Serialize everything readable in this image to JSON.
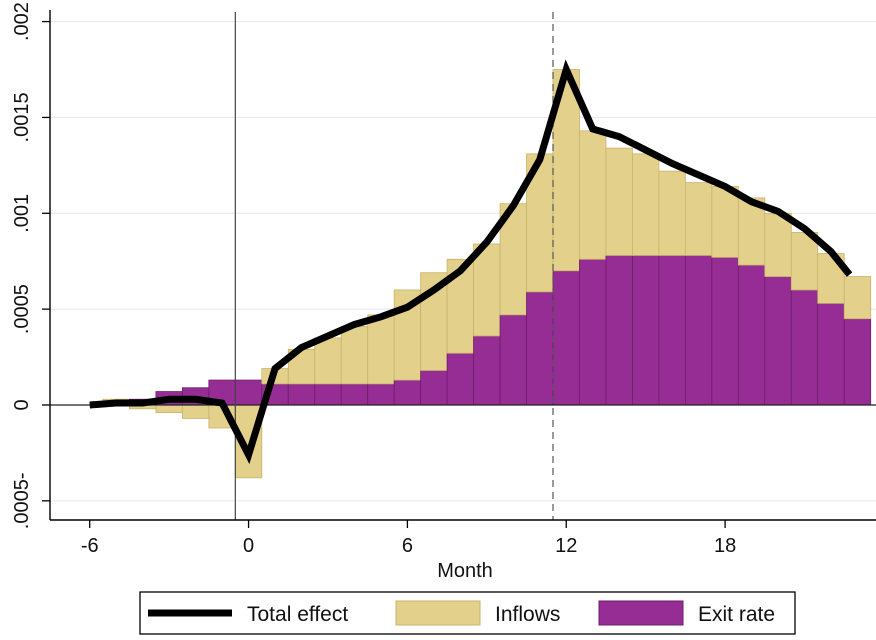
{
  "chart_data": {
    "type": "bar",
    "xlabel": "Month",
    "ylabel": "",
    "xlim": [
      -7.5,
      23.7
    ],
    "ylim": [
      -0.0006,
      0.00205
    ],
    "x_ticks": [
      {
        "value": -6,
        "label": "-6"
      },
      {
        "value": 0,
        "label": "0"
      },
      {
        "value": 6,
        "label": "6"
      },
      {
        "value": 12,
        "label": "12"
      },
      {
        "value": 18,
        "label": "18"
      }
    ],
    "y_ticks": [
      {
        "value": -0.0005,
        "label": ".0005-"
      },
      {
        "value": 0,
        "label": "0"
      },
      {
        "value": 0.0005,
        "label": ".0005"
      },
      {
        "value": 0.001,
        "label": ".001"
      },
      {
        "value": 0.0015,
        "label": ".0015"
      },
      {
        "value": 0.002,
        "label": ".002"
      }
    ],
    "vertical_lines": [
      {
        "x": -0.5,
        "style": "solid"
      },
      {
        "x": 11.5,
        "style": "dashed"
      }
    ],
    "x": [
      -6,
      -5,
      -4,
      -3,
      -2,
      -1,
      0,
      1,
      2,
      3,
      4,
      5,
      6,
      7,
      8,
      9,
      10,
      11,
      12,
      13,
      14,
      15,
      16,
      17,
      18,
      19,
      20,
      21,
      22,
      23
    ],
    "series": [
      {
        "name": "Inflows",
        "type": "bar",
        "color": "#e3d08b",
        "edge": "#c8b36a",
        "values": [
          0.0,
          2e-05,
          -2e-05,
          -4e-05,
          -7e-05,
          -0.00012,
          -0.00038,
          8e-05,
          0.00018,
          0.00024,
          0.0003,
          0.00036,
          0.00047,
          0.00051,
          0.00049,
          0.00048,
          0.00058,
          0.00072,
          0.00105,
          0.00067,
          0.00056,
          0.00053,
          0.00044,
          0.00038,
          0.00037,
          0.00035,
          0.00033,
          0.0003,
          0.00026,
          0.00022
        ]
      },
      {
        "name": "Exit rate",
        "type": "bar",
        "color": "#962d94",
        "edge": "#6d1d6b",
        "values": [
          0.0,
          1e-05,
          3e-05,
          7e-05,
          9e-05,
          0.00013,
          0.00013,
          0.00011,
          0.00011,
          0.00011,
          0.00011,
          0.00011,
          0.00013,
          0.00018,
          0.00027,
          0.00036,
          0.00047,
          0.00059,
          0.0007,
          0.00076,
          0.00078,
          0.00078,
          0.00078,
          0.00078,
          0.00077,
          0.00073,
          0.00067,
          0.0006,
          0.00053,
          0.00045
        ]
      },
      {
        "name": "Total effect",
        "type": "line",
        "color": "#000000",
        "points": [
          [
            -6,
            0.0
          ],
          [
            -5,
            1e-05
          ],
          [
            -4,
            1e-05
          ],
          [
            -3,
            3e-05
          ],
          [
            -2,
            3e-05
          ],
          [
            -1,
            1e-05
          ],
          [
            0,
            -0.00026
          ],
          [
            1,
            0.00019
          ],
          [
            2,
            0.0003
          ],
          [
            3,
            0.00036
          ],
          [
            4,
            0.00042
          ],
          [
            5,
            0.00046
          ],
          [
            6,
            0.00051
          ],
          [
            7,
            0.0006
          ],
          [
            8,
            0.0007
          ],
          [
            9,
            0.00085
          ],
          [
            10,
            0.00104
          ],
          [
            11,
            0.00128
          ],
          [
            12,
            0.00175
          ],
          [
            13,
            0.00144
          ],
          [
            14,
            0.0014
          ],
          [
            15,
            0.00133
          ],
          [
            16,
            0.00126
          ],
          [
            17,
            0.0012
          ],
          [
            18,
            0.00114
          ],
          [
            19,
            0.00106
          ],
          [
            20,
            0.00101
          ],
          [
            21,
            0.00092
          ],
          [
            22,
            0.0008
          ],
          [
            22.7,
            0.00068
          ]
        ]
      }
    ],
    "legend": {
      "position": "bottom",
      "items": [
        {
          "label": "Total effect",
          "kind": "line",
          "color": "#000000"
        },
        {
          "label": "Inflows",
          "kind": "box",
          "color": "#e3d08b"
        },
        {
          "label": "Exit rate",
          "kind": "box",
          "color": "#962d94"
        }
      ]
    },
    "grid": "horizontal"
  }
}
